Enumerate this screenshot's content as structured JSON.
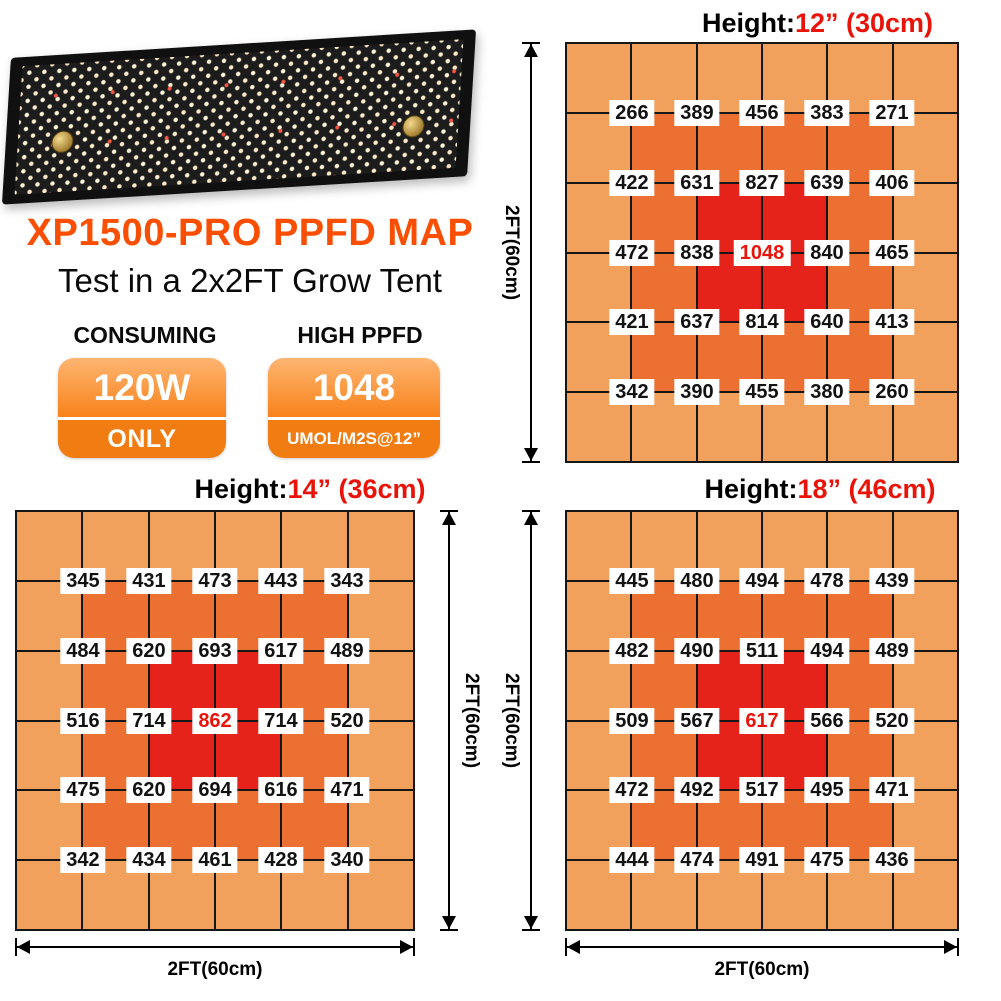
{
  "colors": {
    "heat_outer": "#F2A15C",
    "heat_mid": "#EC7031",
    "heat_center": "#E6231A",
    "value_red": "#E8140A",
    "title_orange": "#FA4F03",
    "badge_orange": "#F8821A"
  },
  "header": {
    "title": "XP1500-PRO PPFD MAP",
    "subtitle": "Test in a 2x2FT Grow Tent"
  },
  "stats": {
    "consuming_heading": "CONSUMING",
    "consuming_value": "120W",
    "consuming_caption": "ONLY",
    "ppfd_heading": "HIGH PPFD",
    "ppfd_value": "1048",
    "ppfd_caption": "UMOL/M2S@12”"
  },
  "chart_data": [
    {
      "type": "heatmap",
      "title_prefix": "Height:",
      "title_value": "12” (30cm)",
      "y_axis_label": "2FT(60cm)",
      "grid_note": "6x6 colored cells, PPFD values at 5x5 interior intersections",
      "values": [
        [
          266,
          389,
          456,
          383,
          271
        ],
        [
          422,
          631,
          827,
          639,
          406
        ],
        [
          472,
          838,
          1048,
          840,
          465
        ],
        [
          421,
          637,
          814,
          640,
          413
        ],
        [
          342,
          390,
          455,
          380,
          260
        ]
      ],
      "max_value": 1048
    },
    {
      "type": "heatmap",
      "title_prefix": "Height:",
      "title_value": "14” (36cm)",
      "y_axis_label": "2FT(60cm)",
      "x_axis_label": "2FT(60cm)",
      "values": [
        [
          345,
          431,
          473,
          443,
          343
        ],
        [
          484,
          620,
          693,
          617,
          489
        ],
        [
          516,
          714,
          862,
          714,
          520
        ],
        [
          475,
          620,
          694,
          616,
          471
        ],
        [
          342,
          434,
          461,
          428,
          340
        ]
      ],
      "max_value": 862
    },
    {
      "type": "heatmap",
      "title_prefix": "Height:",
      "title_value": "18” (46cm)",
      "y_axis_label": "2FT(60cm)",
      "x_axis_label": "2FT(60cm)",
      "values": [
        [
          445,
          480,
          494,
          478,
          439
        ],
        [
          482,
          490,
          511,
          494,
          489
        ],
        [
          509,
          567,
          617,
          566,
          520
        ],
        [
          472,
          492,
          517,
          495,
          471
        ],
        [
          444,
          474,
          491,
          475,
          436
        ]
      ],
      "max_value": 617
    }
  ]
}
